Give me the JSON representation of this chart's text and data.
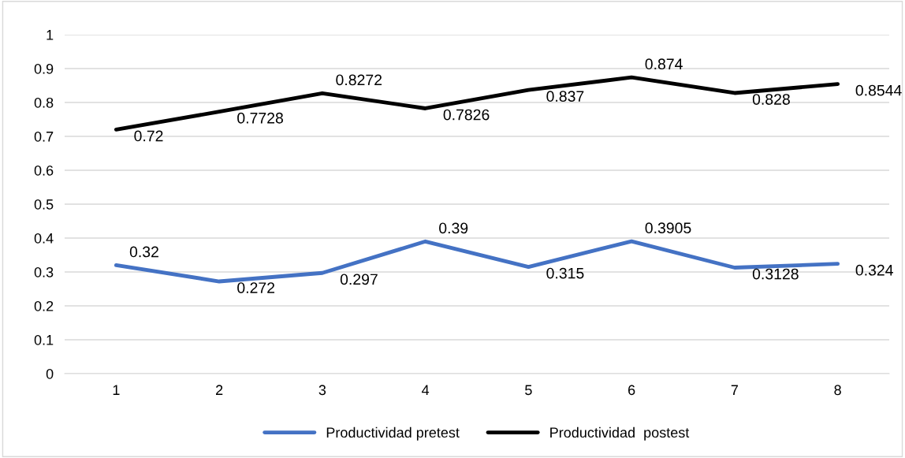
{
  "chart_data": {
    "type": "line",
    "categories": [
      "1",
      "2",
      "3",
      "4",
      "5",
      "6",
      "7",
      "8"
    ],
    "series": [
      {
        "name": "Productividad pretest",
        "color": "#4472c4",
        "values": [
          0.32,
          0.272,
          0.297,
          0.39,
          0.315,
          0.3905,
          0.3128,
          0.324
        ]
      },
      {
        "name": "Productividad  postest",
        "color": "#000000",
        "values": [
          0.72,
          0.7728,
          0.8272,
          0.7826,
          0.837,
          0.874,
          0.828,
          0.8544
        ]
      }
    ],
    "ylim": [
      0,
      1
    ],
    "yticks": [
      0,
      0.1,
      0.2,
      0.3,
      0.4,
      0.5,
      0.6,
      0.7,
      0.8,
      0.9,
      1
    ],
    "grid": "y",
    "legend": "bottom",
    "data_labels": true,
    "marker": "none",
    "line_style": "solid"
  }
}
